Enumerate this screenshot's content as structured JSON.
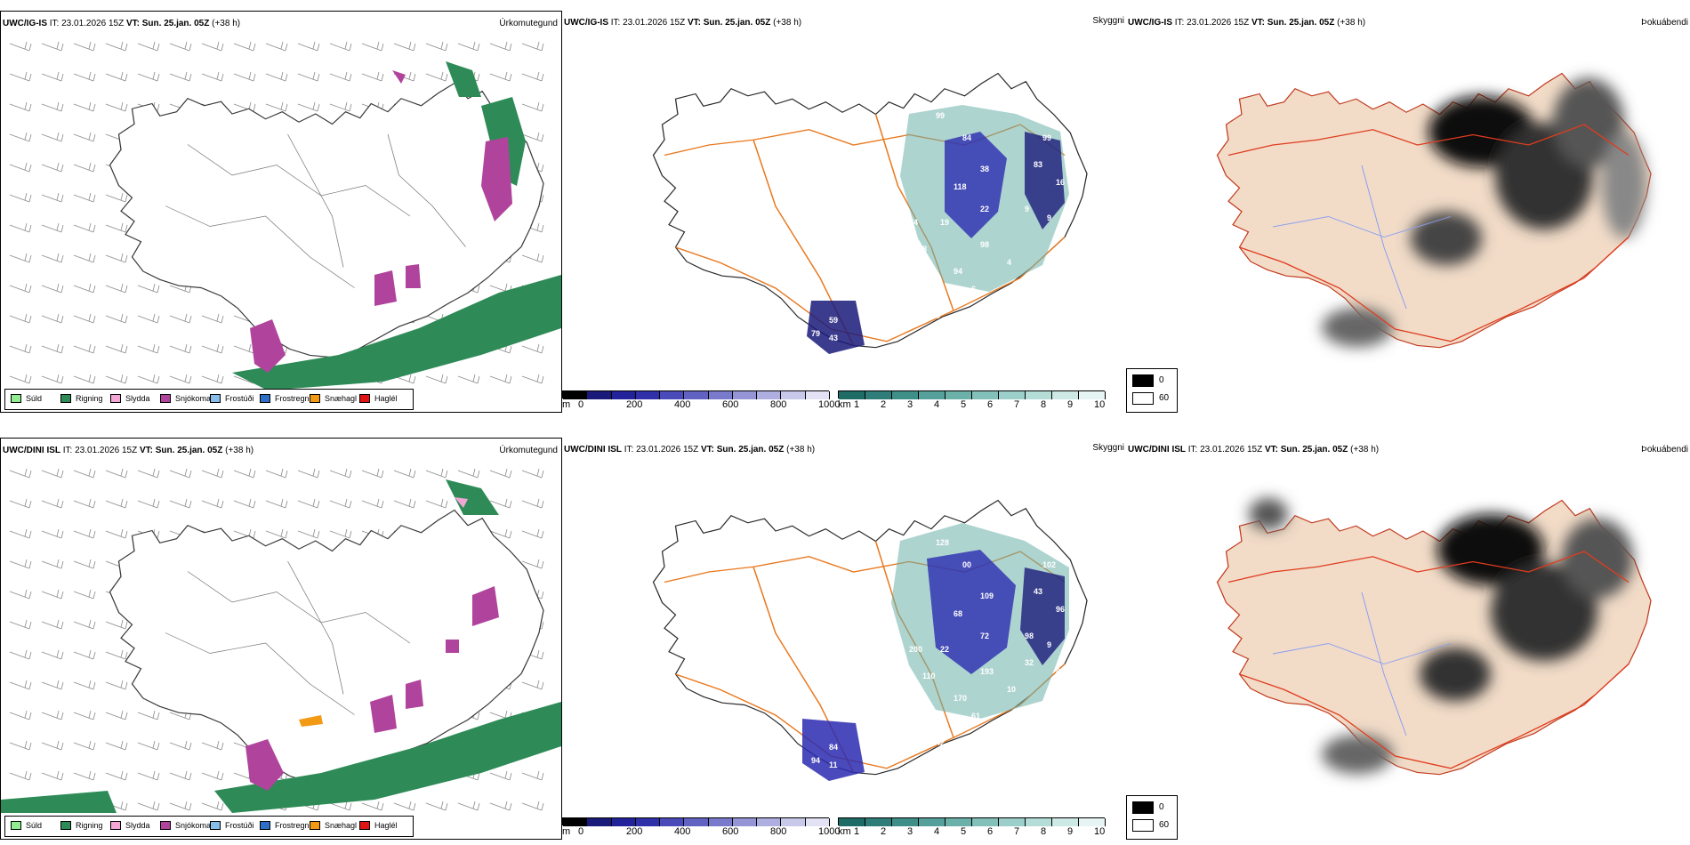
{
  "rows": [
    {
      "model": "UWC/IG-IS",
      "it_label": "IT:",
      "it_value": "23.01.2026 15Z",
      "vt_label": "VT:",
      "vt_value": "Sun. 25.jan. 05Z",
      "lead": "(+38 h)",
      "precip_title": "Úrkomutegund",
      "cloud_title": "Skyggni",
      "fog_title": "Þokuábendi",
      "visibility_values": [
        "99",
        "84",
        "99",
        "83",
        "16",
        "38",
        "118",
        "22",
        "19",
        "74",
        "8",
        "98",
        "94",
        "76",
        "6",
        "59",
        "43",
        "79",
        "9",
        "9",
        "4",
        "6"
      ]
    },
    {
      "model": "UWC/DINI ISL",
      "it_label": "IT:",
      "it_value": "23.01.2026 15Z",
      "vt_label": "VT:",
      "vt_value": "Sun. 25.jan. 05Z",
      "lead": "(+38 h)",
      "precip_title": "Úrkomutegund",
      "cloud_title": "Skyggni",
      "fog_title": "Þokuábendi",
      "visibility_values": [
        "128",
        "00",
        "102",
        "43",
        "96",
        "109",
        "68",
        "72",
        "22",
        "200",
        "110",
        "193",
        "170",
        "57",
        "42",
        "84",
        "11",
        "94",
        "98",
        "9",
        "10",
        "61",
        "86",
        "32"
      ]
    }
  ],
  "precip_legend": [
    {
      "label": "Súld",
      "color": "#90ee90"
    },
    {
      "label": "Rigning",
      "color": "#2e8b57"
    },
    {
      "label": "Slydda",
      "color": "#f4a6d7"
    },
    {
      "label": "Snjókoma",
      "color": "#b0449c"
    },
    {
      "label": "Frostúði",
      "color": "#87bdea"
    },
    {
      "label": "Frostregn",
      "color": "#2f6fc8"
    },
    {
      "label": "Snæhagl",
      "color": "#f29a13"
    },
    {
      "label": "Haglél",
      "color": "#e01414"
    }
  ],
  "cloudbase_bar": {
    "unit": "m",
    "ticks": [
      "0",
      "200",
      "400",
      "600",
      "800",
      "1000"
    ],
    "colors": [
      "#000000",
      "#1a1a7a",
      "#22229a",
      "#3030a8",
      "#4a4ab8",
      "#6262c2",
      "#7a7acc",
      "#9494d6",
      "#aeaee0",
      "#c8c8ea",
      "#e2e2f4"
    ]
  },
  "visibility_bar": {
    "unit": "km",
    "ticks": [
      "1",
      "2",
      "3",
      "4",
      "5",
      "6",
      "7",
      "8",
      "9",
      "10"
    ],
    "colors": [
      "#1f6b66",
      "#2f7d78",
      "#3f8f89",
      "#55a09a",
      "#6cb0aa",
      "#84c0ba",
      "#9ccfca",
      "#b4ddd8",
      "#cce9e6",
      "#e6f4f3"
    ]
  },
  "fog_legend": [
    {
      "label": "0",
      "color": "#000000"
    },
    {
      "label": "60",
      "color": "#ffffff"
    }
  ],
  "colors": {
    "rain": "#2e8b57",
    "snow": "#b0449c",
    "sleet": "#f4a6d7",
    "hail_snow": "#f29a13",
    "land_fog": "#f2dcc8",
    "roads_orange": "#e8781e",
    "roads_red": "#e03c1e",
    "rivers": "#8a9ef2"
  }
}
